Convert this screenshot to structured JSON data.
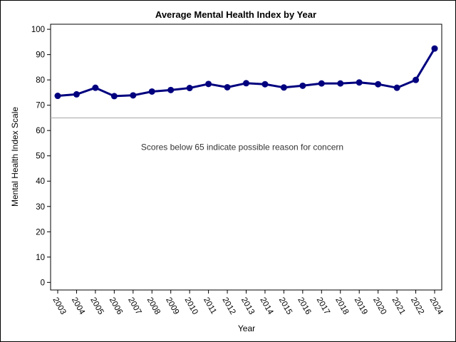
{
  "chart_data": {
    "type": "line",
    "title": "Average Mental Health Index by Year",
    "xlabel": "Year",
    "ylabel": "Mental Health Index Scale",
    "x": [
      "2003",
      "2004",
      "2005",
      "2006",
      "2007",
      "2008",
      "2009",
      "2010",
      "2011",
      "2012",
      "2013",
      "2014",
      "2015",
      "2016",
      "2017",
      "2018",
      "2019",
      "2020",
      "2021",
      "2022",
      "2024"
    ],
    "series": [
      {
        "name": "Average Mental Health Index",
        "values": [
          73.7,
          74.3,
          76.9,
          73.6,
          73.9,
          75.4,
          76.0,
          76.8,
          78.4,
          77.1,
          78.7,
          78.3,
          77.0,
          77.7,
          78.6,
          78.6,
          79.0,
          78.3,
          76.9,
          80.0,
          92.4
        ]
      }
    ],
    "ylim": [
      -3,
      102
    ],
    "yticks": [
      0,
      10,
      20,
      30,
      40,
      50,
      60,
      70,
      80,
      90,
      100
    ],
    "reference_line": {
      "value": 65,
      "label": "Scores below 65 indicate possible reason for concern"
    },
    "grid": false,
    "legend": "none",
    "colors": {
      "line": "#00007f",
      "marker": "#00007f",
      "reference": "#a8a8a8",
      "axis": "#000000"
    }
  }
}
